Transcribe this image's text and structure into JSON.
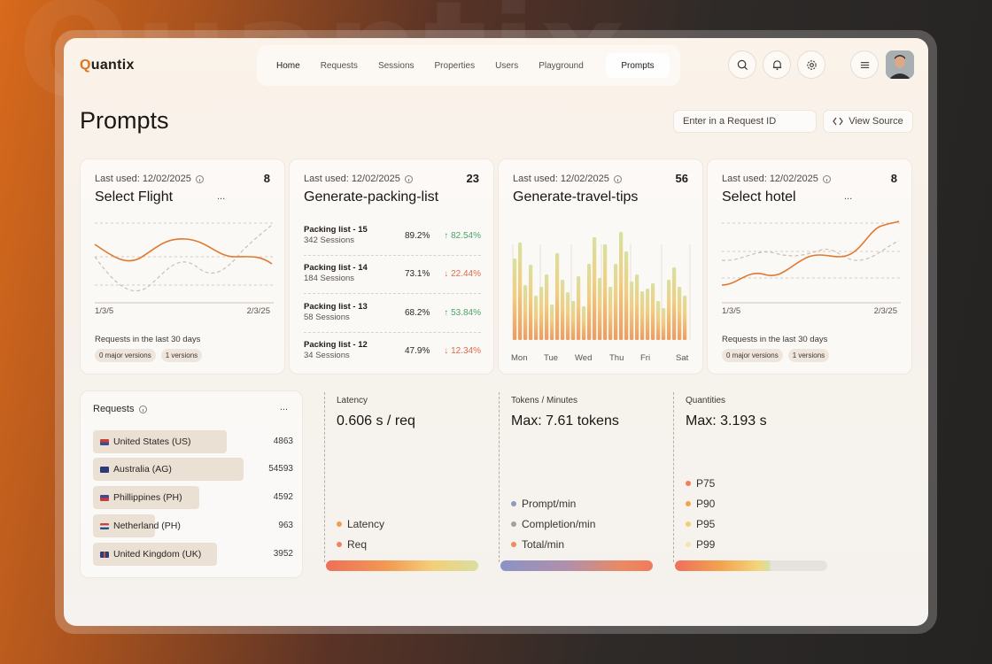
{
  "app": {
    "logo_q": "Q",
    "logo_rest": "uantix"
  },
  "nav": {
    "items": [
      "Home",
      "Requests",
      "Sessions",
      "Properties",
      "Users",
      "Playground"
    ],
    "active": "Prompts"
  },
  "header_icons": [
    "search-icon",
    "bell-icon",
    "gear-icon",
    "menu-icon"
  ],
  "page": {
    "title": "Prompts",
    "request_placeholder": "Enter in a Request ID",
    "view_source": "View Source"
  },
  "cards": [
    {
      "last_used": "Last used: 12/02/2025",
      "count": "8",
      "title": "Select Flight",
      "menu": "...",
      "x_start": "1/3/5",
      "x_end": "2/3/25",
      "footer": "Requests in the last 30 days",
      "chips": [
        "0 major versions",
        "1 versions"
      ]
    },
    {
      "last_used": "Last used: 12/02/2025",
      "count": "23",
      "title": "Generate-packing-list",
      "rows": [
        {
          "name": "Packing list - 15",
          "sessions": "342 Sessions",
          "pct": "89.2%",
          "change": "82.54%",
          "dir": "up"
        },
        {
          "name": "Packing list - 14",
          "sessions": "184 Sessions",
          "pct": "73.1%",
          "change": "22.44%",
          "dir": "down"
        },
        {
          "name": "Packing list - 13",
          "sessions": "58 Sessions",
          "pct": "68.2%",
          "change": "53.84%",
          "dir": "up"
        },
        {
          "name": "Packing list - 12",
          "sessions": "34 Sessions",
          "pct": "47.9%",
          "change": "12.34%",
          "dir": "down"
        }
      ]
    },
    {
      "last_used": "Last used: 12/02/2025",
      "count": "56",
      "title": "Generate-travel-tips",
      "days": [
        "Mon",
        "Tue",
        "Wed",
        "Thu",
        "Fri",
        "Sat"
      ]
    },
    {
      "last_used": "Last used: 12/02/2025",
      "count": "8",
      "title": "Select hotel",
      "menu": "...",
      "x_start": "1/3/5",
      "x_end": "2/3/25",
      "footer": "Requests in the last 30 days",
      "chips": [
        "0 major versions",
        "1 versions"
      ]
    }
  ],
  "requests": {
    "title": "Requests",
    "menu": "...",
    "rows": [
      {
        "country": "United States (US)",
        "value": "4863",
        "fill": 0.67
      },
      {
        "country": "Australia (AG)",
        "value": "54593",
        "fill": 0.75
      },
      {
        "country": "Phillippines (PH)",
        "value": "4592",
        "fill": 0.53
      },
      {
        "country": "Netherland (PH)",
        "value": "963",
        "fill": 0.31
      },
      {
        "country": "United Kingdom (UK)",
        "value": "3952",
        "fill": 0.62
      }
    ]
  },
  "metrics": [
    {
      "label": "Latency",
      "value": "0.606 s / req",
      "legend": [
        {
          "name": "Latency",
          "color": "#ef9d52"
        },
        {
          "name": "Req",
          "color": "#e98564"
        }
      ],
      "bar": "linear-gradient(90deg,#ee6f5a,#f29a52 40%,#f3cf7a 70%,#d9dfa0)"
    },
    {
      "label": "Tokens / Minutes",
      "value": "Max: 7.61 tokens",
      "legend": [
        {
          "name": "Prompt/min",
          "color": "#9397bd"
        },
        {
          "name": "Completion/min",
          "color": "#a7a09a"
        },
        {
          "name": "Total/min",
          "color": "#ec8a62"
        }
      ],
      "bar": "linear-gradient(90deg,#8a93c6,#b28fa9 45%,#ea8a62 80%,#ef7b5c)"
    },
    {
      "label": "Quantities",
      "value": "Max: 3.193 s",
      "legend": [
        {
          "name": "P75",
          "color": "#ef7f5a"
        },
        {
          "name": "P90",
          "color": "#f2a34f"
        },
        {
          "name": "P95",
          "color": "#f3cf6e"
        },
        {
          "name": "P99",
          "color": "#f6e2b2"
        }
      ],
      "bar": "linear-gradient(90deg,#ef6f5c 0%,#f2a34f 30%,#f2d67c 55%,#d7dfa3 62%,#e6e3df 63%,#e6e3df 100%)"
    }
  ]
}
